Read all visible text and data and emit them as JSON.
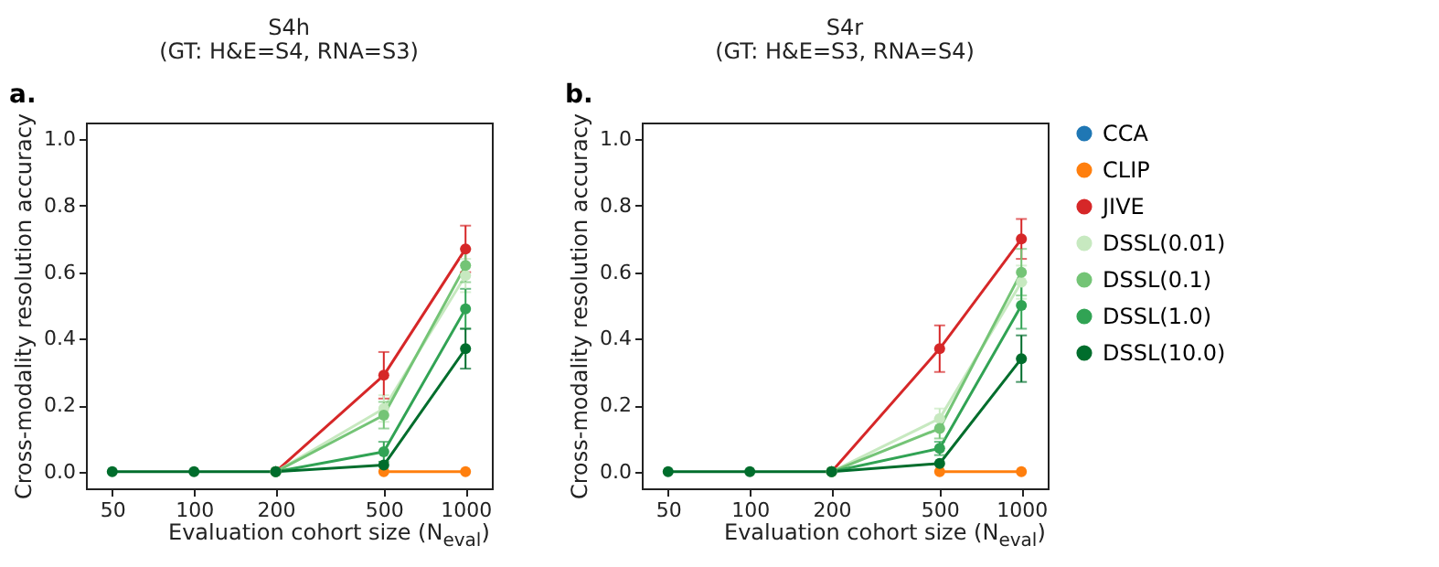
{
  "chart_data": [
    {
      "type": "line",
      "title": "S4h",
      "subtitle": "(GT: H&E=S4, RNA=S3)",
      "xlabel": "Evaluation cohort size (N$_{eval}$)",
      "ylabel": "Cross-modality resolution accuracy",
      "annotations": [
        "a."
      ],
      "x": [
        50,
        100,
        200,
        500,
        1000
      ],
      "xlim": [
        40,
        1250
      ],
      "xticks": [
        50,
        100,
        200,
        500,
        1000
      ],
      "ylim": [
        -0.05,
        1.05
      ],
      "yticks": [
        {
          "value": 0,
          "label": "0.0"
        },
        {
          "value": 0.2,
          "label": "0.2"
        },
        {
          "value": 0.4,
          "label": "0.4"
        },
        {
          "value": 0.6,
          "label": "0.6"
        },
        {
          "value": 0.8,
          "label": "0.8"
        },
        {
          "value": 1,
          "label": "1.0"
        }
      ],
      "log": "x",
      "marker": "circle",
      "grid": false,
      "legend": false,
      "series": [
        {
          "color": "#1f77b4",
          "values": [
            null,
            null,
            null,
            null,
            null
          ]
        },
        {
          "color": "#ff7f0e",
          "values": [
            null,
            null,
            null,
            0,
            0
          ]
        },
        {
          "color": "#d62728",
          "values": [
            null,
            null,
            0,
            0.29,
            0.67
          ],
          "errors": [
            null,
            null,
            null,
            0.07,
            0.07
          ]
        },
        {
          "color": "#c7e9c0",
          "values": [
            null,
            null,
            0,
            0.19,
            0.59
          ],
          "errors": [
            null,
            null,
            null,
            0.04,
            0.05
          ]
        },
        {
          "color": "#74c476",
          "values": [
            null,
            null,
            0,
            0.17,
            0.62
          ],
          "errors": [
            null,
            null,
            null,
            0.04,
            0.05
          ]
        },
        {
          "color": "#31a354",
          "values": [
            null,
            null,
            0,
            0.06,
            0.49
          ],
          "errors": [
            null,
            null,
            null,
            0.03,
            0.06
          ]
        },
        {
          "color": "#006d2c",
          "values": [
            0,
            0,
            0,
            0.02,
            0.37
          ],
          "errors": [
            null,
            null,
            null,
            null,
            0.06
          ]
        }
      ]
    },
    {
      "type": "line",
      "title": "S4r",
      "subtitle": "(GT: H&E=S3, RNA=S4)",
      "xlabel": "Evaluation cohort size (N$_{eval}$)",
      "ylabel": "Cross-modality resolution accuracy",
      "annotations": [
        "b."
      ],
      "x": [
        50,
        100,
        200,
        500,
        1000
      ],
      "xlim": [
        40,
        1250
      ],
      "xticks": [
        50,
        100,
        200,
        500,
        1000
      ],
      "ylim": [
        -0.05,
        1.05
      ],
      "yticks": [
        {
          "value": 0,
          "label": "0.0"
        },
        {
          "value": 0.2,
          "label": "0.2"
        },
        {
          "value": 0.4,
          "label": "0.4"
        },
        {
          "value": 0.6,
          "label": "0.6"
        },
        {
          "value": 0.8,
          "label": "0.8"
        },
        {
          "value": 1,
          "label": "1.0"
        }
      ],
      "log": "x",
      "marker": "circle",
      "grid": false,
      "legend": "right",
      "series": [
        {
          "name": "CCA",
          "color": "#1f77b4",
          "values": [
            null,
            null,
            null,
            null,
            null
          ]
        },
        {
          "name": "CLIP",
          "color": "#ff7f0e",
          "values": [
            null,
            null,
            null,
            0,
            0
          ]
        },
        {
          "name": "JIVE",
          "color": "#d62728",
          "values": [
            null,
            null,
            0,
            0.37,
            0.7
          ],
          "errors": [
            null,
            null,
            null,
            0.07,
            0.06
          ]
        },
        {
          "name": "DSSL(0.01)",
          "color": "#c7e9c0",
          "values": [
            null,
            null,
            0,
            0.16,
            0.57
          ],
          "errors": [
            null,
            null,
            null,
            0.03,
            0.05
          ]
        },
        {
          "name": "DSSL(0.1)",
          "color": "#74c476",
          "values": [
            null,
            null,
            0,
            0.13,
            0.6
          ],
          "errors": [
            null,
            null,
            null,
            0.03,
            0.07
          ]
        },
        {
          "name": "DSSL(1.0)",
          "color": "#31a354",
          "values": [
            null,
            null,
            0,
            0.07,
            0.5
          ],
          "errors": [
            null,
            null,
            null,
            0.02,
            0.07
          ]
        },
        {
          "name": "DSSL(10.0)",
          "color": "#006d2c",
          "values": [
            0,
            0,
            0,
            0.025,
            0.34
          ],
          "errors": [
            null,
            null,
            null,
            null,
            0.07
          ]
        }
      ]
    }
  ]
}
